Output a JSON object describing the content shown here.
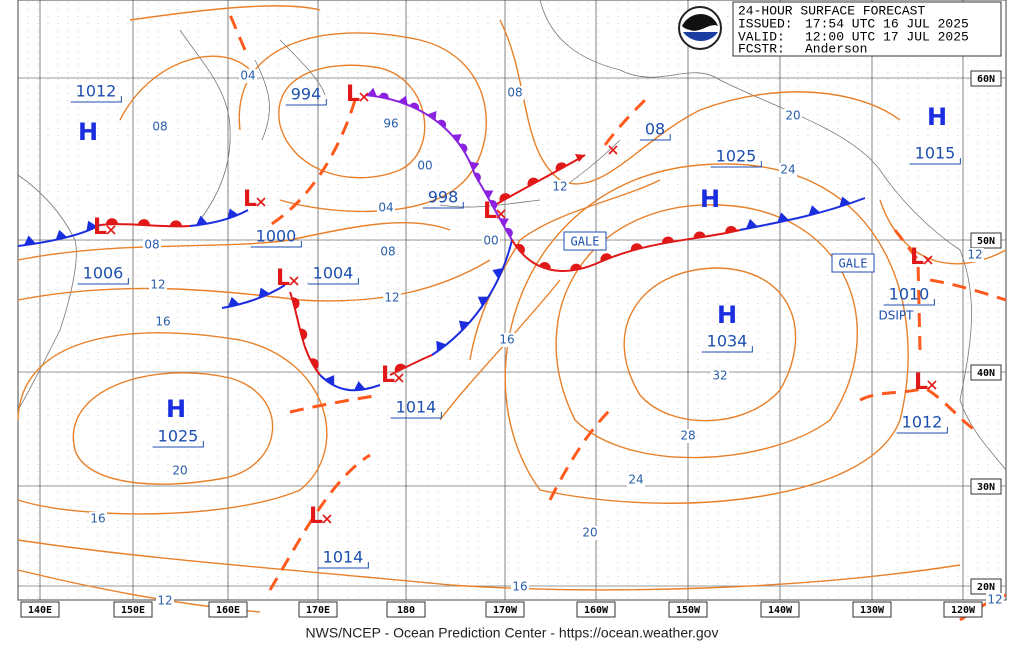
{
  "header": {
    "title": "24-HOUR SURFACE FORECAST",
    "issued_label": "ISSUED:",
    "issued": "17:54 UTC 16 JUL 2025",
    "valid_label": "VALID:",
    "valid": "12:00 UTC 17 JUL 2025",
    "forecaster_label": "FCSTR:",
    "forecaster": "Anderson"
  },
  "latitudes": [
    "60N",
    "50N",
    "40N",
    "30N",
    "20N"
  ],
  "longitudes": [
    "140E",
    "150E",
    "160E",
    "170E",
    "180",
    "170W",
    "160W",
    "150W",
    "140W",
    "130W",
    "120W"
  ],
  "highs": [
    {
      "symbol": "H",
      "pressure": "1012"
    },
    {
      "symbol": "H",
      "pressure": "1025"
    },
    {
      "symbol": "H",
      "pressure": "1025"
    },
    {
      "symbol": "H",
      "pressure": "1034"
    },
    {
      "symbol": "H",
      "pressure": "1015"
    }
  ],
  "lows": [
    {
      "symbol": "L",
      "pressure": "1006"
    },
    {
      "symbol": "L",
      "pressure": "1000"
    },
    {
      "symbol": "L",
      "pressure": "1004"
    },
    {
      "symbol": "L",
      "pressure": "994"
    },
    {
      "symbol": "L",
      "pressure": "998"
    },
    {
      "symbol": "L",
      "pressure": "1014"
    },
    {
      "symbol": "L",
      "pressure": "08"
    },
    {
      "symbol": "L",
      "pressure": "1014"
    },
    {
      "symbol": "L",
      "pressure": "1010"
    },
    {
      "symbol": "L",
      "pressure": "1012"
    }
  ],
  "isobar_labels": [
    "04",
    "08",
    "96",
    "00",
    "08",
    "04",
    "08",
    "08",
    "00",
    "12",
    "12",
    "12",
    "16",
    "16",
    "20",
    "24",
    "32",
    "28",
    "24",
    "20",
    "20",
    "16",
    "16",
    "12",
    "12",
    "12"
  ],
  "warnings": [
    "GALE",
    "GALE"
  ],
  "status": "DSIPT",
  "footer": "NWS/NCEP - Ocean Prediction Center - https://ocean.weather.gov"
}
